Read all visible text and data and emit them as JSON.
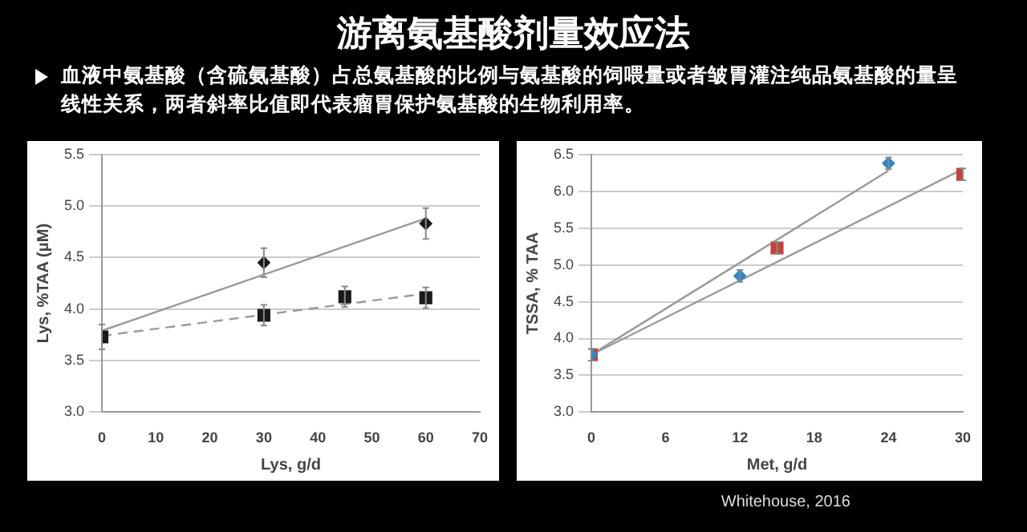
{
  "chart_data": [
    {
      "type": "scatter",
      "title": "游离氨基酸剂量效应法",
      "subtitle": "血液中氨基酸（含硫氨基酸）占总氨基酸的比例与氨基酸的饲喂量或者皱胃灌注纯品氨基酸的量呈线性关系，两者斜率比值即代表瘤胃保护氨基酸的生物利用率。",
      "xlabel": "Lys, g/d",
      "ylabel": "Lys, %TAA (μM)",
      "xlim": [
        0,
        70
      ],
      "xticks": [
        0,
        10,
        20,
        30,
        40,
        50,
        60,
        70
      ],
      "ylim": [
        3.0,
        5.5
      ],
      "yticks": [
        {
          "value": 3,
          "label": "3.0"
        },
        3.5,
        {
          "value": 4,
          "label": "4.0"
        },
        4.5,
        {
          "value": 5,
          "label": "5.0"
        },
        5.5
      ],
      "grid": "y",
      "legend": false,
      "series": [
        {
          "type": "line",
          "x": [
            0,
            60
          ],
          "values": [
            3.79,
            4.88
          ],
          "color": "#9a9a9a",
          "marker": "none",
          "line_style": "solid"
        },
        {
          "type": "line",
          "x": [
            0,
            60
          ],
          "values": [
            3.74,
            4.15
          ],
          "color": "#9a9a9a",
          "marker": "none",
          "line_style": "dashed"
        },
        {
          "x": [
            30,
            60
          ],
          "values": [
            4.45,
            4.83
          ],
          "errors": [
            0.14,
            0.15
          ],
          "color": "#1a1a1a",
          "marker": "diamond"
        },
        {
          "x": [
            0,
            30,
            45,
            60
          ],
          "values": [
            3.73,
            3.94,
            4.12,
            4.11
          ],
          "errors": [
            0.12,
            0.1,
            0.1,
            0.1
          ],
          "color": "#1a1a1a",
          "marker": "square"
        }
      ]
    },
    {
      "type": "scatter",
      "xlabel": "Met, g/d",
      "ylabel": "TSSA, % TAA",
      "xlim": [
        0,
        30
      ],
      "xticks": [
        0,
        6,
        12,
        18,
        24,
        30
      ],
      "ylim": [
        3.0,
        6.5
      ],
      "yticks": [
        {
          "value": 3,
          "label": "3.0"
        },
        3.5,
        {
          "value": 4,
          "label": "4.0"
        },
        4.5,
        {
          "value": 5,
          "label": "5.0"
        },
        5.5,
        {
          "value": 6,
          "label": "6.0"
        },
        6.5
      ],
      "grid": "y",
      "legend": false,
      "annotations": [
        "Whitehouse, 2016"
      ],
      "series": [
        {
          "type": "line",
          "x": [
            0,
            24
          ],
          "values": [
            3.78,
            6.28
          ],
          "color": "#9a9a9a",
          "marker": "none",
          "line_style": "solid"
        },
        {
          "type": "line",
          "x": [
            0,
            30
          ],
          "values": [
            3.78,
            6.3
          ],
          "color": "#9a9a9a",
          "marker": "none",
          "line_style": "solid"
        },
        {
          "x": [
            0,
            12,
            24
          ],
          "values": [
            3.78,
            4.85,
            6.38
          ],
          "errors": [
            0.08,
            0.08,
            0.08
          ],
          "color": "#2f86c8",
          "marker": "diamond"
        },
        {
          "x": [
            0,
            15,
            30
          ],
          "values": [
            3.78,
            5.23,
            6.23
          ],
          "errors": [
            0.08,
            0.08,
            0.08
          ],
          "color": "#c8413a",
          "marker": "square"
        }
      ]
    }
  ]
}
